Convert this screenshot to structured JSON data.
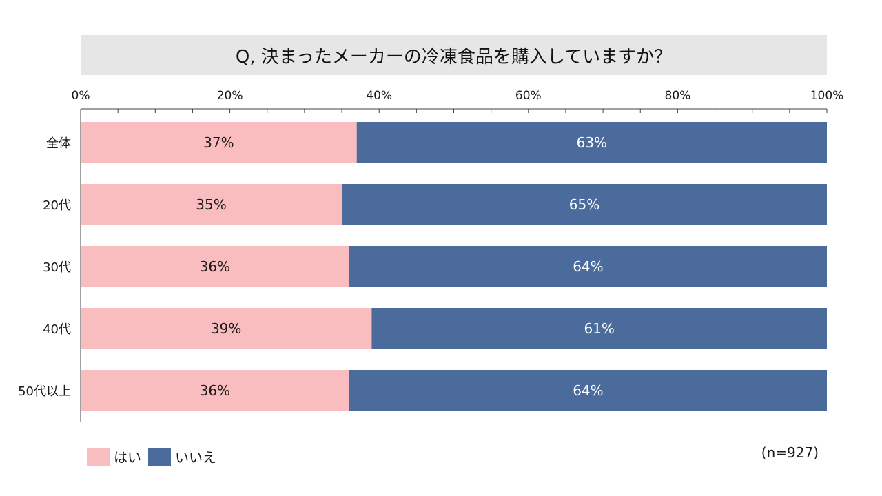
{
  "chart_data": {
    "type": "bar",
    "orientation": "horizontal",
    "stacked": true,
    "title": "Q, 決まったメーカーの冷凍食品を購入していますか？",
    "categories": [
      "全体",
      "20代",
      "30代",
      "40代",
      "50代以上"
    ],
    "series": [
      {
        "name": "はい",
        "color": "#f9bdbf",
        "label_color": "#1a1a1a",
        "values": [
          37,
          35,
          36,
          39,
          36
        ],
        "labels": [
          "37%",
          "35%",
          "36%",
          "39%",
          "36%"
        ]
      },
      {
        "name": "いいえ",
        "color": "#4a6b9b",
        "label_color": "#ffffff",
        "values": [
          63,
          65,
          64,
          61,
          64
        ],
        "labels": [
          "63%",
          "65%",
          "64%",
          "61%",
          "64%"
        ]
      }
    ],
    "xlim": [
      0,
      100
    ],
    "x_ticks": [
      0,
      20,
      40,
      60,
      80,
      100
    ],
    "x_tick_labels": [
      "0%",
      "20%",
      "40%",
      "60%",
      "80%",
      "100%"
    ],
    "x_minor_step": 5,
    "axis_color": "#404040",
    "legend_position": "bottom-left",
    "note": "(n=927)"
  }
}
